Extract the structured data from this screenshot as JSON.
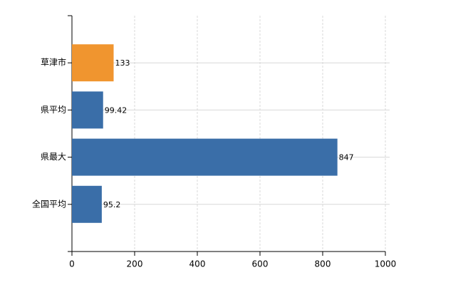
{
  "chart_data": {
    "type": "hbar",
    "categories": [
      "草津市",
      "県平均",
      "県最大",
      "全国平均"
    ],
    "values": [
      133,
      99.42,
      847,
      95.2
    ],
    "colors": [
      "#f0952f",
      "#3a6ea8",
      "#3a6ea8",
      "#3a6ea8"
    ],
    "xlim": [
      0,
      1000
    ],
    "xticks": [
      0,
      200,
      400,
      600,
      800,
      1000
    ],
    "grid": true
  }
}
